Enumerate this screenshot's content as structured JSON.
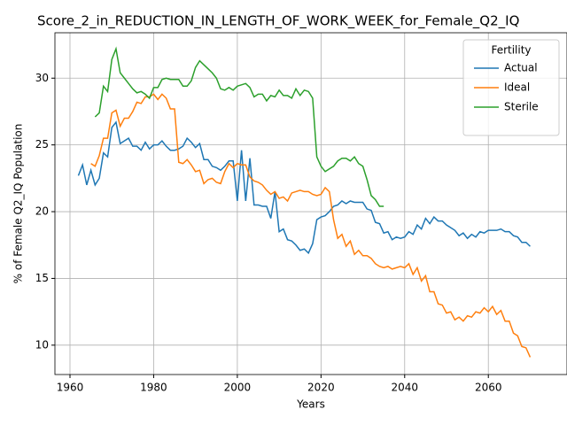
{
  "chart_data": {
    "type": "line",
    "title": "Score_2_in_REDUCTION_IN_LENGTH_OF_WORK_WEEK_for_Female_Q2_IQ",
    "xlabel": "Years",
    "ylabel": "% of Female Q2_IQ Population",
    "legend_title": "Fertility",
    "legend": "upper right",
    "grid": true,
    "xlim": [
      1956.4,
      2078.8
    ],
    "ylim": [
      7.8,
      33.4
    ],
    "xticks": [
      1960,
      1980,
      2000,
      2020,
      2040,
      2060
    ],
    "yticks": [
      10,
      15,
      20,
      25,
      30
    ],
    "x": [
      1962,
      1963,
      1964,
      1965,
      1966,
      1967,
      1968,
      1969,
      1970,
      1971,
      1972,
      1973,
      1974,
      1975,
      1976,
      1977,
      1978,
      1979,
      1980,
      1981,
      1982,
      1983,
      1984,
      1985,
      1986,
      1987,
      1988,
      1989,
      1990,
      1991,
      1992,
      1993,
      1994,
      1995,
      1996,
      1997,
      1998,
      1999,
      2000,
      2001,
      2002,
      2003,
      2004,
      2005,
      2006,
      2007,
      2008,
      2009,
      2010,
      2011,
      2012,
      2013,
      2014,
      2015,
      2016,
      2017,
      2018,
      2019,
      2020,
      2021,
      2022,
      2023,
      2024,
      2025,
      2026,
      2027,
      2028,
      2029,
      2030,
      2031,
      2032,
      2033,
      2034,
      2035,
      2036,
      2037,
      2038,
      2039,
      2040,
      2041,
      2042,
      2043,
      2044,
      2045,
      2046,
      2047,
      2048,
      2049,
      2050,
      2051,
      2052,
      2053,
      2054,
      2055,
      2056,
      2057,
      2058,
      2059,
      2060,
      2061,
      2062,
      2063,
      2064,
      2065,
      2066,
      2067,
      2068,
      2069,
      2070
    ],
    "series": [
      {
        "name": "Actual",
        "color": "#1f77b4",
        "values": [
          22.7,
          23.5,
          22.0,
          23.1,
          22.0,
          22.5,
          24.4,
          24.1,
          26.3,
          26.7,
          25.1,
          25.3,
          25.5,
          24.9,
          24.9,
          24.6,
          25.2,
          24.7,
          25.0,
          25.0,
          25.3,
          24.9,
          24.6,
          24.6,
          24.7,
          24.9,
          25.5,
          25.2,
          24.8,
          25.1,
          23.9,
          23.9,
          23.4,
          23.3,
          23.1,
          23.4,
          23.8,
          23.8,
          20.8,
          24.6,
          20.8,
          24.0,
          20.5,
          20.5,
          20.4,
          20.4,
          19.5,
          21.5,
          18.5,
          18.7,
          17.9,
          17.8,
          17.5,
          17.1,
          17.2,
          16.9,
          17.6,
          19.4,
          19.6,
          19.7,
          20.0,
          20.4,
          20.5,
          20.8,
          20.6,
          20.8,
          20.7,
          20.7,
          20.7,
          20.2,
          20.1,
          19.2,
          19.1,
          18.4,
          18.5,
          17.9,
          18.1,
          18.0,
          18.1,
          18.5,
          18.3,
          19.0,
          18.7,
          19.5,
          19.1,
          19.6,
          19.3,
          19.3,
          19.0,
          18.8,
          18.6,
          18.2,
          18.4,
          18.0,
          18.3,
          18.1,
          18.5,
          18.4,
          18.6,
          18.6,
          18.6,
          18.7,
          18.5,
          18.5,
          18.2,
          18.1,
          17.7,
          17.7,
          17.4
        ]
      },
      {
        "name": "Ideal",
        "color": "#ff7f0e",
        "values": [
          null,
          null,
          null,
          23.6,
          23.4,
          24.2,
          25.5,
          25.5,
          27.4,
          27.6,
          26.4,
          27.0,
          27.0,
          27.5,
          28.2,
          28.1,
          28.6,
          28.6,
          28.8,
          28.4,
          28.8,
          28.5,
          27.7,
          27.7,
          23.7,
          23.6,
          23.9,
          23.5,
          23.0,
          23.1,
          22.1,
          22.4,
          22.5,
          22.2,
          22.1,
          23.0,
          23.6,
          23.3,
          23.6,
          23.5,
          23.5,
          22.6,
          22.3,
          22.2,
          22.0,
          21.6,
          21.3,
          21.5,
          21.0,
          21.1,
          20.8,
          21.4,
          21.5,
          21.6,
          21.5,
          21.5,
          21.3,
          21.2,
          21.3,
          21.8,
          21.5,
          19.4,
          18.0,
          18.3,
          17.4,
          17.8,
          16.8,
          17.1,
          16.7,
          16.7,
          16.5,
          16.1,
          15.9,
          15.8,
          15.9,
          15.7,
          15.8,
          15.9,
          15.8,
          16.1,
          15.3,
          15.8,
          14.8,
          15.2,
          14.0,
          14.0,
          13.1,
          13.0,
          12.4,
          12.5,
          11.9,
          12.1,
          11.8,
          12.2,
          12.1,
          12.5,
          12.4,
          12.8,
          12.5,
          12.9,
          12.3,
          12.6,
          11.8,
          11.8,
          10.9,
          10.7,
          9.9,
          9.8,
          9.1
        ]
      },
      {
        "name": "Sterile",
        "color": "#2ca02c",
        "values": [
          null,
          null,
          null,
          null,
          27.1,
          27.4,
          29.4,
          29.0,
          31.4,
          32.2,
          30.4,
          30.0,
          29.6,
          29.2,
          28.9,
          29.0,
          28.8,
          28.5,
          29.3,
          29.3,
          29.9,
          30.0,
          29.9,
          29.9,
          29.9,
          29.4,
          29.4,
          29.8,
          30.8,
          31.3,
          31.0,
          30.7,
          30.4,
          30.0,
          29.2,
          29.1,
          29.3,
          29.1,
          29.4,
          29.5,
          29.6,
          29.3,
          28.6,
          28.8,
          28.8,
          28.3,
          28.7,
          28.6,
          29.1,
          28.7,
          28.7,
          28.5,
          29.2,
          28.7,
          29.1,
          29.0,
          28.5,
          24.1,
          23.4,
          23.0,
          23.2,
          23.4,
          23.8,
          24.0,
          24.0,
          23.8,
          24.1,
          23.6,
          23.4,
          22.4,
          21.2,
          20.9,
          20.4,
          20.4,
          null,
          null,
          null,
          null,
          null,
          null,
          null,
          null,
          null,
          null,
          null,
          null,
          null,
          null,
          null,
          null,
          null,
          null,
          null,
          null,
          null,
          null,
          null,
          null,
          null,
          null,
          null,
          null,
          null,
          null,
          null,
          null,
          null,
          null,
          null
        ]
      }
    ]
  }
}
